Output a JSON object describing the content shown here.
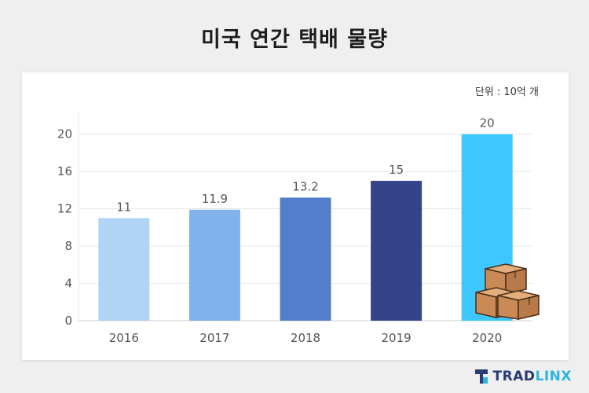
{
  "title": "미국 연간 택배 물량",
  "unit_label": "단위 : 10억 개",
  "brand": {
    "part1": "TRAD",
    "part2": "LINX"
  },
  "colors": {
    "background": "#efefef",
    "bar_2016": "#b0d4f5",
    "bar_2017": "#80b2ec",
    "bar_2018": "#527ecb",
    "bar_2019": "#334588",
    "bar_2020": "#3ec7fe",
    "brand_dark": "#2a3b73",
    "brand_light": "#2ab6e0"
  },
  "chart_data": {
    "type": "bar",
    "title": "미국 연간 택배 물량",
    "categories": [
      "2016",
      "2017",
      "2018",
      "2019",
      "2020"
    ],
    "values": [
      11,
      11.9,
      13.2,
      15,
      20
    ],
    "value_labels": [
      "11",
      "11.9",
      "13.2",
      "15",
      "20"
    ],
    "ylim": [
      0,
      22
    ],
    "yticks": [
      0,
      4,
      8,
      12,
      16,
      20
    ],
    "grid": true,
    "legend": "none",
    "annotation_icon": "cardboard-boxes-icon"
  }
}
